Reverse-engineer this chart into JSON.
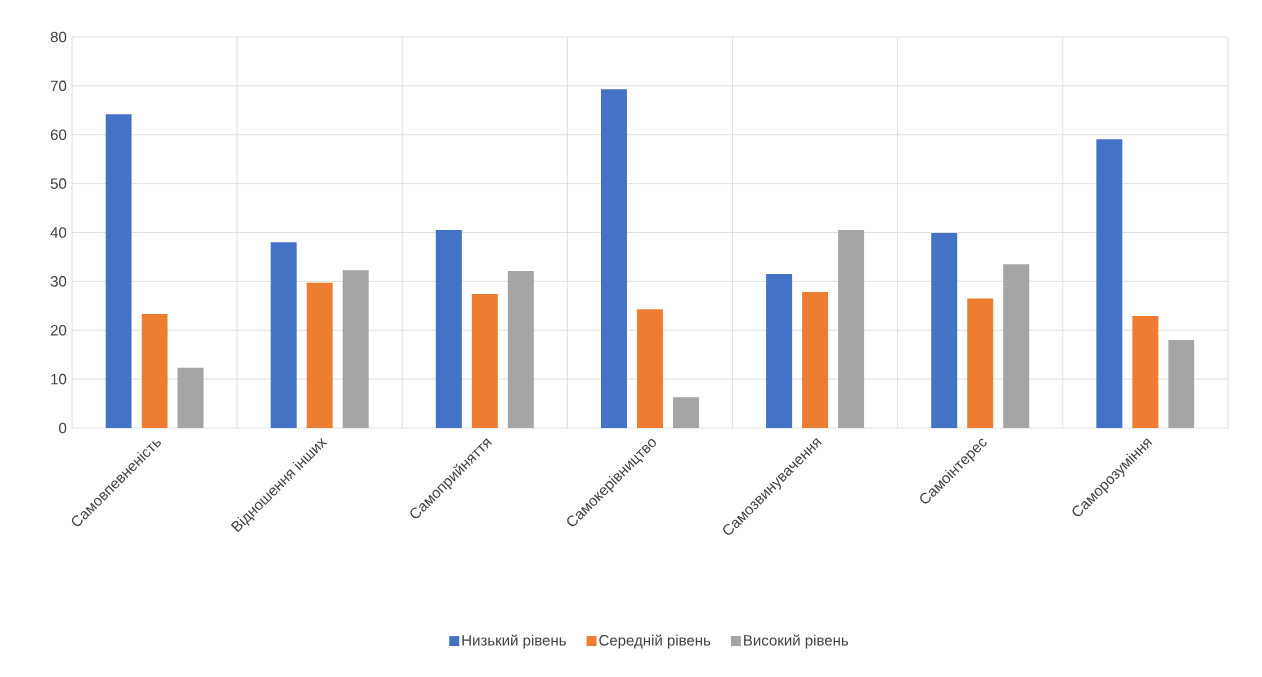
{
  "chart_data": {
    "type": "bar",
    "categories": [
      "Самовпевненість",
      "Відношення інших",
      "Самоприйняття",
      "Самокерівництво",
      "Самозвинувачення",
      "Самоінтерес",
      "Саморозуміння"
    ],
    "series": [
      {
        "name": "Низький рівень",
        "color": "#4472c4",
        "values": [
          64.2,
          38.0,
          40.5,
          69.3,
          31.5,
          39.9,
          59.1
        ]
      },
      {
        "name": "Середній рівень",
        "color": "#ed7d31",
        "values": [
          23.3,
          29.7,
          27.4,
          24.3,
          27.8,
          26.5,
          22.9
        ]
      },
      {
        "name": "Високий рівень",
        "color": "#a5a5a5",
        "values": [
          12.3,
          32.3,
          32.1,
          6.3,
          40.5,
          33.5,
          18.0
        ]
      }
    ],
    "ylim": [
      0,
      80
    ],
    "yticks": [
      0,
      10,
      20,
      30,
      40,
      50,
      60,
      70,
      80
    ],
    "grid": true,
    "legend": "bottom"
  }
}
